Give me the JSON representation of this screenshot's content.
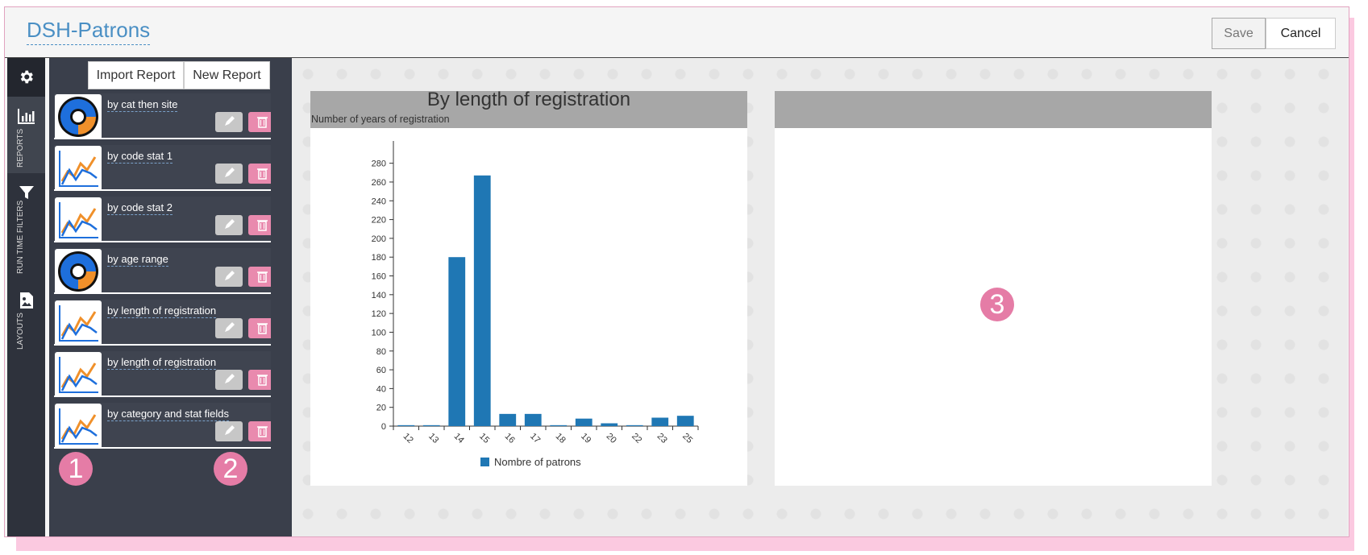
{
  "app": {
    "title": "DSH-Patrons"
  },
  "header": {
    "save_label": "Save",
    "cancel_label": "Cancel"
  },
  "rail": {
    "sections": [
      {
        "label": "REPORTS",
        "icon": "bar-chart-icon"
      },
      {
        "label": "RUN TIME FILTERS",
        "icon": "filter-icon"
      },
      {
        "label": "LAYOUTS",
        "icon": "image-icon"
      }
    ]
  },
  "panel": {
    "import_label": "Import Report",
    "new_label": "New Report",
    "reports": [
      {
        "label": "by cat then site",
        "thumb": "donut-chart-icon"
      },
      {
        "label": "by code stat 1",
        "thumb": "line-chart-icon"
      },
      {
        "label": "by code stat 2",
        "thumb": "line-chart-icon"
      },
      {
        "label": "by age range",
        "thumb": "donut-chart-icon"
      },
      {
        "label": "by length of registration",
        "thumb": "line-chart-icon"
      },
      {
        "label": "by length of registration",
        "thumb": "line-chart-icon"
      },
      {
        "label": "by category and stat fields",
        "thumb": "line-chart-icon"
      }
    ]
  },
  "badges": [
    "1",
    "2",
    "3"
  ],
  "colors": {
    "accent": "#4a8fc4",
    "badge": "#e57ca6",
    "bar": "#1f77b4",
    "delete": "#e98aae"
  },
  "chart_data": {
    "type": "bar",
    "title": "By length of registration",
    "subtitle": "Number of years of registration",
    "categories": [
      "12",
      "13",
      "14",
      "15",
      "16",
      "17",
      "18",
      "19",
      "20",
      "22",
      "23",
      "25"
    ],
    "series": [
      {
        "name": "Nombre of patrons",
        "values": [
          1,
          1,
          180,
          267,
          13,
          13,
          1,
          8,
          3,
          1,
          9,
          11
        ]
      }
    ],
    "yticks": [
      0,
      20,
      40,
      60,
      80,
      100,
      120,
      140,
      160,
      180,
      200,
      220,
      240,
      260,
      280
    ],
    "ylim": [
      0,
      290
    ],
    "legend": "bottom"
  }
}
